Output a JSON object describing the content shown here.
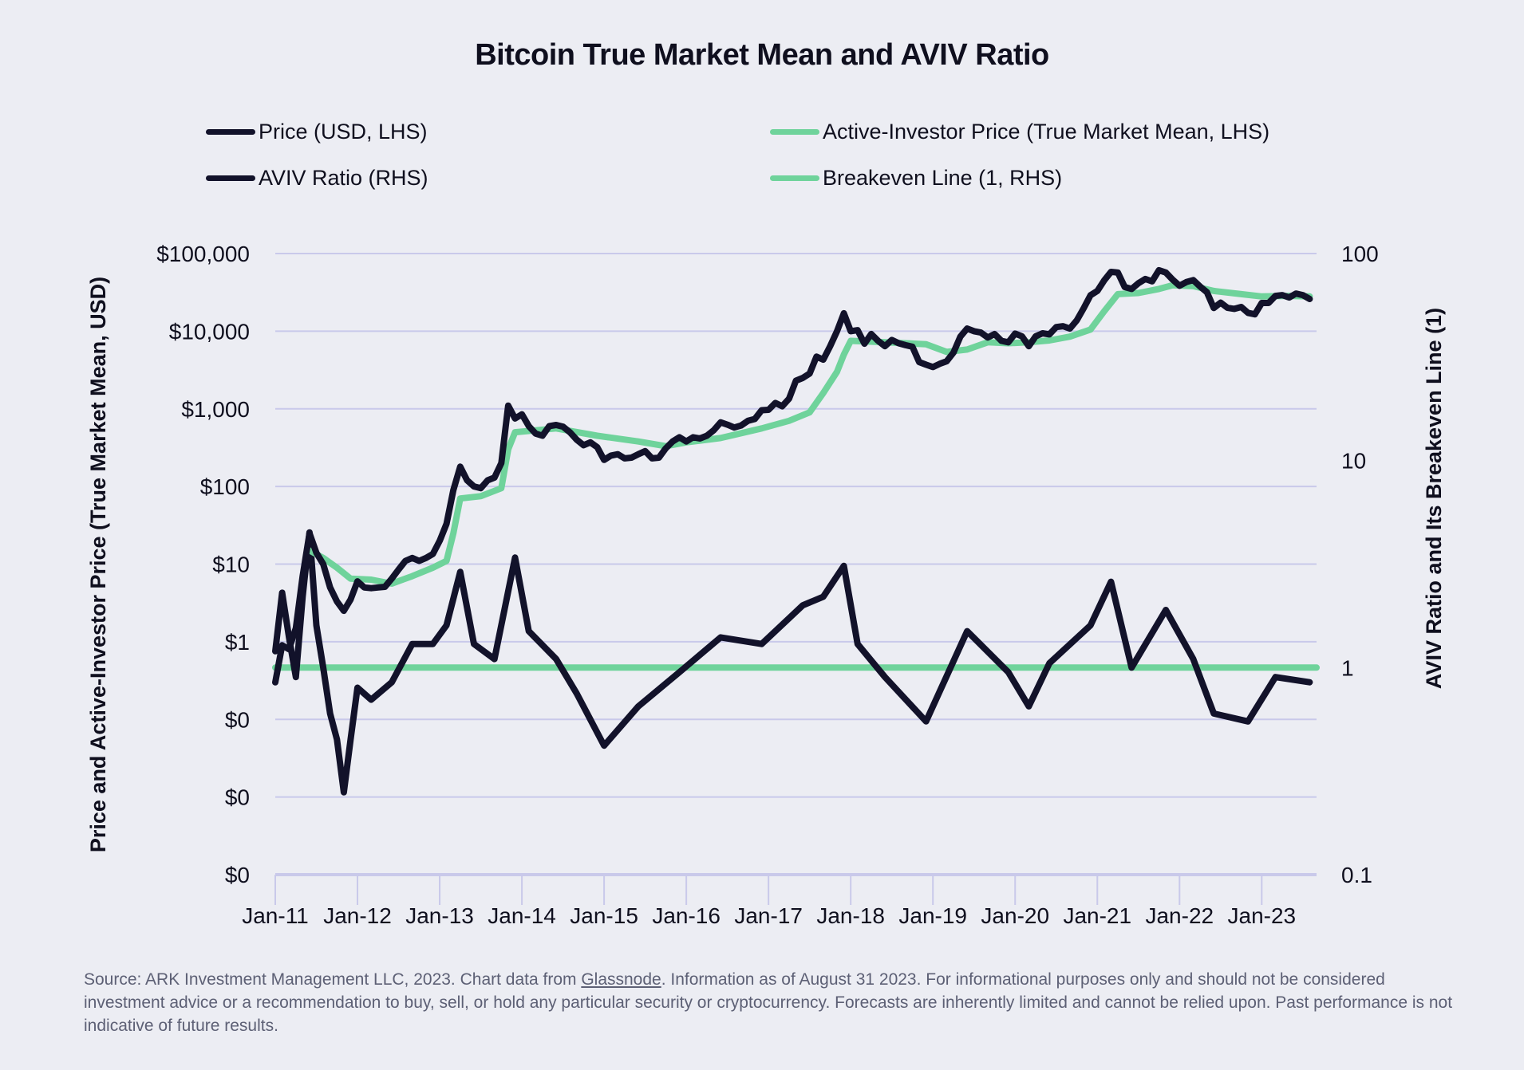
{
  "colors": {
    "background": "#ecedf3",
    "price": "#12122a",
    "aviv": "#12122a",
    "active_investor": "#6fd39b",
    "breakeven": "#6fd39b",
    "grid": "#c9c9ea"
  },
  "chart_data": {
    "type": "line",
    "title": "Bitcoin True Market Mean and AVIV Ratio",
    "ylabel_left": "Price and Active-Investor Price (True Market Mean, USD)",
    "ylabel_right": "AVIV Ratio and Its Breakeven Line (1)",
    "y_left_scale": "log",
    "y_left_range": [
      0.001,
      100000
    ],
    "y_left_ticks": [
      {
        "value": 100000,
        "label": "$100,000"
      },
      {
        "value": 10000,
        "label": "$10,000"
      },
      {
        "value": 1000,
        "label": "$1,000"
      },
      {
        "value": 100,
        "label": "$100"
      },
      {
        "value": 10,
        "label": "$10"
      },
      {
        "value": 1,
        "label": "$1"
      },
      {
        "value": 0.1,
        "label": "$0"
      },
      {
        "value": 0.01,
        "label": "$0"
      },
      {
        "value": 0.001,
        "label": "$0"
      }
    ],
    "y_right_scale": "log",
    "y_right_range": [
      0.1,
      100
    ],
    "y_right_ticks": [
      {
        "value": 100,
        "label": "100"
      },
      {
        "value": 10,
        "label": "10"
      },
      {
        "value": 1,
        "label": "1"
      },
      {
        "value": 0.1,
        "label": "0.1"
      }
    ],
    "x_ticks": [
      "Jan-11",
      "Jan-12",
      "Jan-13",
      "Jan-14",
      "Jan-15",
      "Jan-16",
      "Jan-17",
      "Jan-18",
      "Jan-19",
      "Jan-20",
      "Jan-21",
      "Jan-22",
      "Jan-23"
    ],
    "x_range": [
      "2011-01",
      "2023-08"
    ],
    "grid": "horizontal",
    "legend_placement": "top",
    "legend": [
      {
        "label": "Price (USD, LHS)",
        "color": "#12122a"
      },
      {
        "label": "Active-Investor Price (True Market Mean, LHS)",
        "color": "#6fd39b"
      },
      {
        "label": "AVIV Ratio (RHS)",
        "color": "#12122a"
      },
      {
        "label": "Breakeven Line (1, RHS)",
        "color": "#6fd39b"
      }
    ],
    "series": [
      {
        "name": "Price (USD, LHS)",
        "axis": "left",
        "color": "#12122a",
        "points": [
          [
            "2011-01",
            0.3
          ],
          [
            "2011-02",
            0.9
          ],
          [
            "2011-03",
            0.8
          ],
          [
            "2011-04",
            1.5
          ],
          [
            "2011-05",
            7
          ],
          [
            "2011-06",
            25
          ],
          [
            "2011-07",
            14
          ],
          [
            "2011-08",
            10
          ],
          [
            "2011-09",
            5
          ],
          [
            "2011-10",
            3.3
          ],
          [
            "2011-11",
            2.5
          ],
          [
            "2011-12",
            3.5
          ],
          [
            "2012-01",
            6
          ],
          [
            "2012-02",
            5
          ],
          [
            "2012-03",
            4.9
          ],
          [
            "2012-04",
            5
          ],
          [
            "2012-05",
            5.1
          ],
          [
            "2012-06",
            6.5
          ],
          [
            "2012-07",
            8.5
          ],
          [
            "2012-08",
            11
          ],
          [
            "2012-09",
            12
          ],
          [
            "2012-10",
            11
          ],
          [
            "2012-11",
            12
          ],
          [
            "2012-12",
            13.5
          ],
          [
            "2013-01",
            20
          ],
          [
            "2013-02",
            33
          ],
          [
            "2013-03",
            90
          ],
          [
            "2013-04",
            180
          ],
          [
            "2013-05",
            120
          ],
          [
            "2013-06",
            100
          ],
          [
            "2013-07",
            95
          ],
          [
            "2013-08",
            120
          ],
          [
            "2013-09",
            130
          ],
          [
            "2013-10",
            200
          ],
          [
            "2013-11",
            1100
          ],
          [
            "2013-12",
            750
          ],
          [
            "2014-01",
            850
          ],
          [
            "2014-02",
            600
          ],
          [
            "2014-03",
            480
          ],
          [
            "2014-04",
            450
          ],
          [
            "2014-05",
            600
          ],
          [
            "2014-06",
            620
          ],
          [
            "2014-07",
            590
          ],
          [
            "2014-08",
            500
          ],
          [
            "2014-09",
            400
          ],
          [
            "2014-10",
            340
          ],
          [
            "2014-11",
            370
          ],
          [
            "2014-12",
            320
          ],
          [
            "2015-01",
            220
          ],
          [
            "2015-02",
            250
          ],
          [
            "2015-03",
            260
          ],
          [
            "2015-04",
            230
          ],
          [
            "2015-05",
            235
          ],
          [
            "2015-06",
            260
          ],
          [
            "2015-07",
            285
          ],
          [
            "2015-08",
            230
          ],
          [
            "2015-09",
            235
          ],
          [
            "2015-10",
            310
          ],
          [
            "2015-11",
            380
          ],
          [
            "2015-12",
            430
          ],
          [
            "2016-01",
            380
          ],
          [
            "2016-02",
            430
          ],
          [
            "2016-03",
            415
          ],
          [
            "2016-04",
            450
          ],
          [
            "2016-05",
            530
          ],
          [
            "2016-06",
            670
          ],
          [
            "2016-07",
            625
          ],
          [
            "2016-08",
            575
          ],
          [
            "2016-09",
            610
          ],
          [
            "2016-10",
            700
          ],
          [
            "2016-11",
            740
          ],
          [
            "2016-12",
            960
          ],
          [
            "2017-01",
            970
          ],
          [
            "2017-02",
            1190
          ],
          [
            "2017-03",
            1080
          ],
          [
            "2017-04",
            1350
          ],
          [
            "2017-05",
            2300
          ],
          [
            "2017-06",
            2500
          ],
          [
            "2017-07",
            2850
          ],
          [
            "2017-08",
            4700
          ],
          [
            "2017-09",
            4300
          ],
          [
            "2017-10",
            6400
          ],
          [
            "2017-11",
            10000
          ],
          [
            "2017-12",
            17000
          ],
          [
            "2018-01",
            10000
          ],
          [
            "2018-02",
            10300
          ],
          [
            "2018-03",
            6900
          ],
          [
            "2018-04",
            9200
          ],
          [
            "2018-05",
            7500
          ],
          [
            "2018-06",
            6400
          ],
          [
            "2018-07",
            7700
          ],
          [
            "2018-08",
            7000
          ],
          [
            "2018-09",
            6600
          ],
          [
            "2018-10",
            6300
          ],
          [
            "2018-11",
            4000
          ],
          [
            "2018-12",
            3700
          ],
          [
            "2019-01",
            3450
          ],
          [
            "2019-02",
            3800
          ],
          [
            "2019-03",
            4100
          ],
          [
            "2019-04",
            5300
          ],
          [
            "2019-05",
            8500
          ],
          [
            "2019-06",
            10800
          ],
          [
            "2019-07",
            10000
          ],
          [
            "2019-08",
            9600
          ],
          [
            "2019-09",
            8300
          ],
          [
            "2019-10",
            9200
          ],
          [
            "2019-11",
            7500
          ],
          [
            "2019-12",
            7200
          ],
          [
            "2020-01",
            9300
          ],
          [
            "2020-02",
            8600
          ],
          [
            "2020-03",
            6400
          ],
          [
            "2020-04",
            8600
          ],
          [
            "2020-05",
            9400
          ],
          [
            "2020-06",
            9100
          ],
          [
            "2020-07",
            11300
          ],
          [
            "2020-08",
            11600
          ],
          [
            "2020-09",
            10800
          ],
          [
            "2020-10",
            13800
          ],
          [
            "2020-11",
            19700
          ],
          [
            "2020-12",
            29000
          ],
          [
            "2021-01",
            33000
          ],
          [
            "2021-02",
            45000
          ],
          [
            "2021-03",
            58000
          ],
          [
            "2021-04",
            57000
          ],
          [
            "2021-05",
            37000
          ],
          [
            "2021-06",
            35000
          ],
          [
            "2021-07",
            41500
          ],
          [
            "2021-08",
            47000
          ],
          [
            "2021-09",
            43800
          ],
          [
            "2021-10",
            61000
          ],
          [
            "2021-11",
            57000
          ],
          [
            "2021-12",
            46000
          ],
          [
            "2022-01",
            38500
          ],
          [
            "2022-02",
            43000
          ],
          [
            "2022-03",
            45500
          ],
          [
            "2022-04",
            37700
          ],
          [
            "2022-05",
            31800
          ],
          [
            "2022-06",
            19900
          ],
          [
            "2022-07",
            23300
          ],
          [
            "2022-08",
            20000
          ],
          [
            "2022-09",
            19400
          ],
          [
            "2022-10",
            20500
          ],
          [
            "2022-11",
            17200
          ],
          [
            "2022-12",
            16500
          ],
          [
            "2023-01",
            23100
          ],
          [
            "2023-02",
            23100
          ],
          [
            "2023-03",
            28500
          ],
          [
            "2023-04",
            29200
          ],
          [
            "2023-05",
            27200
          ],
          [
            "2023-06",
            30500
          ],
          [
            "2023-07",
            29200
          ],
          [
            "2023-08",
            26000
          ]
        ]
      },
      {
        "name": "Active-Investor Price (True Market Mean, LHS)",
        "axis": "left",
        "color": "#6fd39b",
        "points": [
          [
            "2011-06",
            15
          ],
          [
            "2011-08",
            12
          ],
          [
            "2011-10",
            9
          ],
          [
            "2011-12",
            6.5
          ],
          [
            "2012-03",
            6.3
          ],
          [
            "2012-06",
            5.6
          ],
          [
            "2012-09",
            7
          ],
          [
            "2012-12",
            9
          ],
          [
            "2013-02",
            11
          ],
          [
            "2013-03",
            25
          ],
          [
            "2013-04",
            70
          ],
          [
            "2013-07",
            75
          ],
          [
            "2013-10",
            95
          ],
          [
            "2013-11",
            300
          ],
          [
            "2013-12",
            500
          ],
          [
            "2014-06",
            560
          ],
          [
            "2014-12",
            450
          ],
          [
            "2015-06",
            380
          ],
          [
            "2015-10",
            330
          ],
          [
            "2016-01",
            370
          ],
          [
            "2016-06",
            420
          ],
          [
            "2016-12",
            560
          ],
          [
            "2017-04",
            700
          ],
          [
            "2017-07",
            900
          ],
          [
            "2017-09",
            1600
          ],
          [
            "2017-11",
            3000
          ],
          [
            "2017-12",
            5000
          ],
          [
            "2018-01",
            7500
          ],
          [
            "2018-06",
            7200
          ],
          [
            "2018-12",
            6800
          ],
          [
            "2019-03",
            5400
          ],
          [
            "2019-06",
            5800
          ],
          [
            "2019-09",
            7200
          ],
          [
            "2019-12",
            7000
          ],
          [
            "2020-03",
            7200
          ],
          [
            "2020-06",
            7600
          ],
          [
            "2020-09",
            8500
          ],
          [
            "2020-12",
            10500
          ],
          [
            "2021-02",
            18000
          ],
          [
            "2021-04",
            30000
          ],
          [
            "2021-07",
            31000
          ],
          [
            "2021-10",
            35000
          ],
          [
            "2021-12",
            39000
          ],
          [
            "2022-03",
            38000
          ],
          [
            "2022-06",
            33000
          ],
          [
            "2022-10",
            30000
          ],
          [
            "2023-01",
            28000
          ],
          [
            "2023-05",
            28500
          ],
          [
            "2023-08",
            28000
          ]
        ]
      },
      {
        "name": "AVIV Ratio (RHS)",
        "axis": "right",
        "color": "#12122a",
        "points": [
          [
            "2011-01",
            1.2
          ],
          [
            "2011-02",
            2.3
          ],
          [
            "2011-03",
            1.4
          ],
          [
            "2011-04",
            0.9
          ],
          [
            "2011-05",
            2.2
          ],
          [
            "2011-06",
            4.5
          ],
          [
            "2011-07",
            1.6
          ],
          [
            "2011-08",
            1.0
          ],
          [
            "2011-09",
            0.6
          ],
          [
            "2011-10",
            0.45
          ],
          [
            "2011-11",
            0.25
          ],
          [
            "2011-12",
            0.45
          ],
          [
            "2012-01",
            0.8
          ],
          [
            "2012-03",
            0.7
          ],
          [
            "2012-06",
            0.85
          ],
          [
            "2012-09",
            1.3
          ],
          [
            "2012-12",
            1.3
          ],
          [
            "2013-02",
            1.6
          ],
          [
            "2013-04",
            2.9
          ],
          [
            "2013-06",
            1.3
          ],
          [
            "2013-09",
            1.1
          ],
          [
            "2013-12",
            3.4
          ],
          [
            "2014-02",
            1.5
          ],
          [
            "2014-06",
            1.1
          ],
          [
            "2014-09",
            0.75
          ],
          [
            "2015-01",
            0.42
          ],
          [
            "2015-06",
            0.65
          ],
          [
            "2015-12",
            0.95
          ],
          [
            "2016-06",
            1.4
          ],
          [
            "2016-12",
            1.3
          ],
          [
            "2017-06",
            2.0
          ],
          [
            "2017-09",
            2.2
          ],
          [
            "2017-12",
            3.1
          ],
          [
            "2018-02",
            1.3
          ],
          [
            "2018-06",
            0.9
          ],
          [
            "2018-12",
            0.55
          ],
          [
            "2019-06",
            1.5
          ],
          [
            "2019-12",
            0.95
          ],
          [
            "2020-03",
            0.65
          ],
          [
            "2020-06",
            1.05
          ],
          [
            "2020-12",
            1.6
          ],
          [
            "2021-03",
            2.6
          ],
          [
            "2021-06",
            1.0
          ],
          [
            "2021-11",
            1.9
          ],
          [
            "2022-03",
            1.1
          ],
          [
            "2022-06",
            0.6
          ],
          [
            "2022-11",
            0.55
          ],
          [
            "2023-03",
            0.9
          ],
          [
            "2023-08",
            0.85
          ]
        ]
      },
      {
        "name": "Breakeven Line (1, RHS)",
        "axis": "right",
        "color": "#6fd39b",
        "points": [
          [
            "2011-01",
            1
          ],
          [
            "2023-08",
            1
          ]
        ]
      }
    ]
  },
  "footer": {
    "before_link": "Source: ARK Investment Management LLC, 2023. Chart data from ",
    "link": "Glassnode",
    "after_link": ". Information as of August 31 2023. For informational purposes only and should not be considered investment advice or a recommendation to buy, sell, or hold any particular security or cryptocurrency. Forecasts are inherently limited and cannot be relied upon. Past performance is not indicative of future results."
  }
}
